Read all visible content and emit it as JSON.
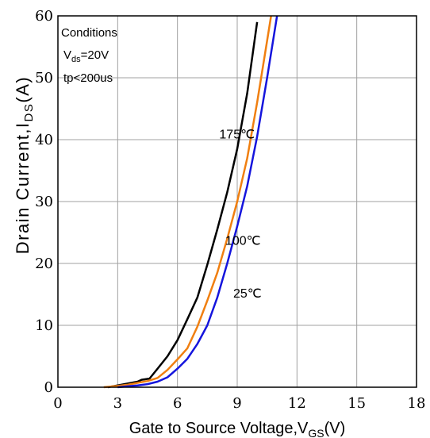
{
  "chart_data": {
    "type": "line",
    "xlabel": "Gate to Source Voltage,V",
    "xlabel_sub": "GS",
    "xlabel_suffix": "(V)",
    "ylabel": "Drain Current,I",
    "ylabel_sub": "DS",
    "ylabel_suffix": "(A)",
    "xlim": [
      0,
      18
    ],
    "ylim": [
      0,
      60
    ],
    "x_ticks": [
      "0",
      "3",
      "6",
      "9",
      "12",
      "15",
      "18"
    ],
    "y_ticks": [
      "0",
      "10",
      "20",
      "30",
      "40",
      "50",
      "60"
    ],
    "grid": true,
    "conditions": {
      "title": "Conditions",
      "vds_prefix": "V",
      "vds_sub": "ds",
      "vds_value": "=20V",
      "tp": "tp<200us"
    },
    "series": [
      {
        "name": "175℃",
        "color": "#000000",
        "x": [
          2.5,
          3.0,
          3.5,
          4.0,
          4.2,
          4.6,
          5.0,
          5.5,
          6.0,
          6.5,
          7.0,
          7.5,
          8.0,
          8.5,
          9.0,
          9.5,
          10.0
        ],
        "y": [
          0,
          0.3,
          0.6,
          0.9,
          1.2,
          1.4,
          3.0,
          5.0,
          7.6,
          11.0,
          14.5,
          19.8,
          25.5,
          31.5,
          38.5,
          47.5,
          59.0
        ]
      },
      {
        "name": "100℃",
        "color": "#f07f10",
        "x": [
          2.3,
          3.0,
          3.5,
          4.0,
          4.5,
          5.0,
          5.5,
          6.0,
          6.5,
          7.0,
          7.5,
          8.0,
          8.5,
          9.0,
          9.5,
          10.0,
          10.5,
          10.7
        ],
        "y": [
          0,
          0.2,
          0.4,
          0.7,
          1.0,
          1.5,
          2.8,
          4.5,
          6.3,
          9.8,
          14.0,
          18.5,
          24.0,
          30.0,
          37.0,
          46.0,
          56.0,
          60.0
        ]
      },
      {
        "name": "25℃",
        "color": "#1515dd",
        "x": [
          3.0,
          4.0,
          4.5,
          5.0,
          5.5,
          6.0,
          6.5,
          7.0,
          7.5,
          8.0,
          8.5,
          9.0,
          9.5,
          10.0,
          10.5,
          11.0
        ],
        "y": [
          0,
          0.3,
          0.5,
          0.9,
          1.6,
          3.0,
          4.6,
          7.0,
          10.0,
          14.5,
          20.0,
          26.0,
          32.5,
          40.5,
          50.0,
          60.0
        ]
      }
    ],
    "annotations": [
      {
        "text": "175℃",
        "x": 8.1,
        "y": 40.2
      },
      {
        "text": "100℃",
        "x": 8.4,
        "y": 23.0
      },
      {
        "text": "25℃",
        "x": 8.8,
        "y": 14.5
      }
    ]
  }
}
